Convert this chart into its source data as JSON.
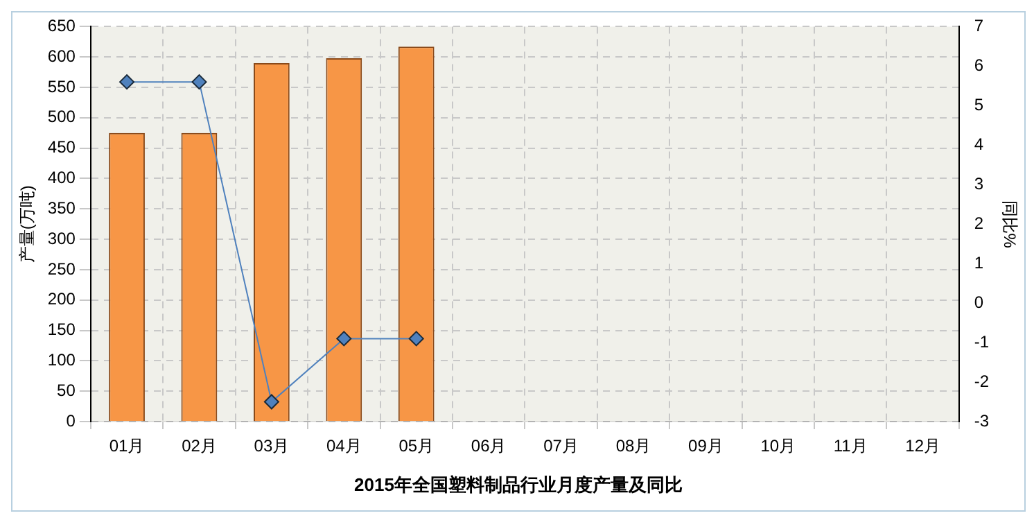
{
  "chart_data": {
    "type": "bar",
    "title": "2015年全国塑料制品行业月度产量及同比",
    "ylabel": "产量(万吨)",
    "y2label": "同比%",
    "categories": [
      "01月",
      "02月",
      "03月",
      "04月",
      "05月",
      "06月",
      "07月",
      "08月",
      "09月",
      "10月",
      "11月",
      "12月"
    ],
    "series": [
      {
        "color": "#f79646",
        "values": [
          475,
          475,
          590,
          598,
          617,
          null,
          null,
          null,
          null,
          null,
          null,
          null
        ]
      },
      {
        "type": "line",
        "axis": "y2",
        "color": "#4f81bd",
        "marker": "diamond",
        "values": [
          5.6,
          5.6,
          -2.5,
          -0.9,
          -0.9,
          null,
          null,
          null,
          null,
          null,
          null,
          null
        ]
      }
    ],
    "ylim": [
      0,
      650
    ],
    "yticks": [
      0,
      50,
      100,
      150,
      200,
      250,
      300,
      350,
      400,
      450,
      500,
      550,
      600,
      650
    ],
    "y2lim": [
      -3,
      7
    ],
    "y2ticks": [
      -3,
      -2,
      -1,
      0,
      1,
      2,
      3,
      4,
      5,
      6,
      7
    ],
    "grid": true,
    "legend": false
  }
}
